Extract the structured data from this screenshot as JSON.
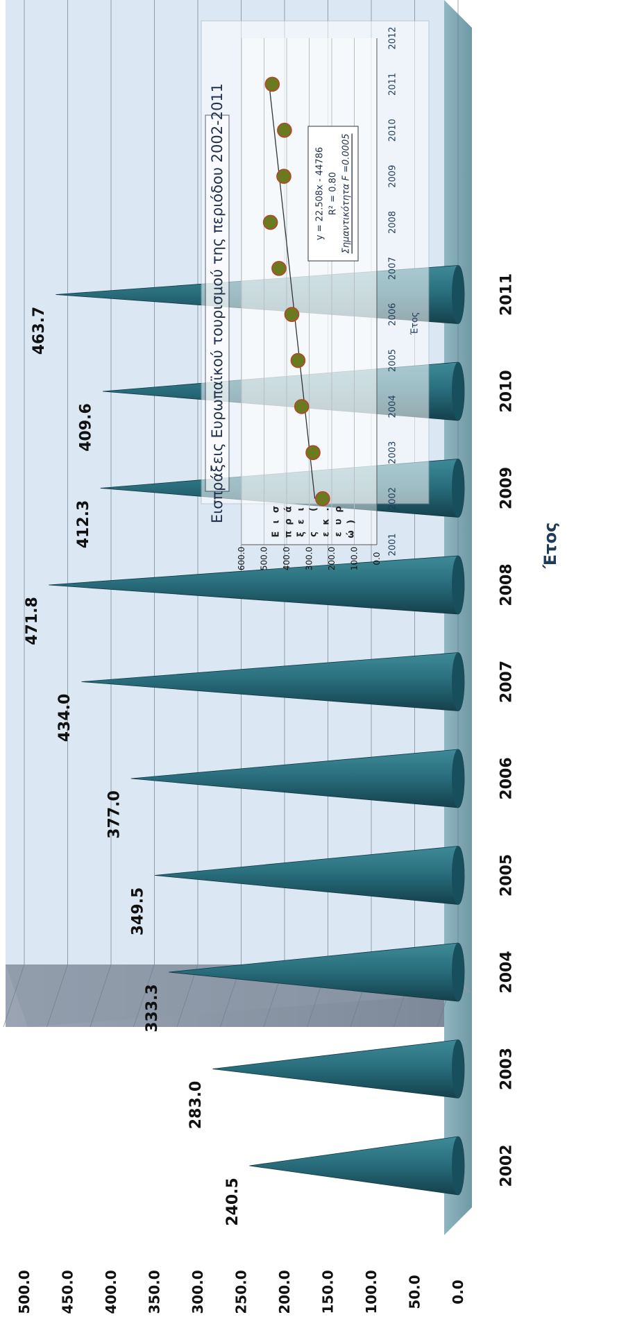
{
  "chart_data": [
    {
      "type": "bar",
      "style": "3d-cone",
      "orientation": "rotated-90-clockwise",
      "categories": [
        "2002",
        "2003",
        "2004",
        "2005",
        "2006",
        "2007",
        "2008",
        "2009",
        "2010",
        "2011"
      ],
      "values": [
        240.5,
        283.0,
        333.3,
        349.5,
        377.0,
        434.0,
        471.8,
        412.3,
        409.6,
        463.7
      ],
      "data_labels": [
        "240.5",
        "283.0",
        "333.3",
        "349.5",
        "377.0",
        "434.0",
        "471.8",
        "412.3",
        "409.6",
        "463.7"
      ],
      "xlabel": "Έτος",
      "ylabel": "",
      "ylim": [
        0,
        500
      ],
      "yticks": [
        "0.0",
        "50.0",
        "100.0",
        "150.0",
        "200.0",
        "250.0",
        "300.0",
        "350.0",
        "400.0",
        "450.0",
        "500.0"
      ],
      "grid": true,
      "colors": {
        "cone": "#1f5d6b",
        "plot_bg": "#dce9f5",
        "floor": "#7fa7b3",
        "wall": "#8a96a6",
        "grid": "#6f7e8c"
      }
    },
    {
      "type": "scatter",
      "position": "inset",
      "title": "Εισπράξεις Ευρωπαϊκού τουρισμού της περιόδου 2002-2011",
      "xlabel": "Έτος",
      "ylabel": "Εισπράξεις (εκ.ευρώ)",
      "xticks": [
        "2001",
        "2002",
        "2003",
        "2004",
        "2005",
        "2006",
        "2007",
        "2008",
        "2009",
        "2010",
        "2011",
        "2012"
      ],
      "yticks": [
        "0.0",
        "100.0",
        "200.0",
        "300.0",
        "400.0",
        "500.0",
        "600.0"
      ],
      "xlim": [
        2001,
        2012
      ],
      "ylim": [
        0,
        600
      ],
      "x": [
        2002,
        2003,
        2004,
        2005,
        2006,
        2007,
        2008,
        2009,
        2010,
        2011
      ],
      "y": [
        240.5,
        283.0,
        333.3,
        349.5,
        377.0,
        434.0,
        471.8,
        412.3,
        409.6,
        463.7
      ],
      "trendline": {
        "slope": 22.508,
        "intercept": -44786
      },
      "annotation": {
        "equation": "y = 22.508x - 44786",
        "r2": "R² = 0.80",
        "significance": "Σημαντικότητα F =0.0005"
      },
      "colors": {
        "marker_fill": "#6b7a1f",
        "marker_edge": "#b5452a",
        "trendline": "#333333",
        "title_text": "#1f2f4a"
      }
    }
  ]
}
